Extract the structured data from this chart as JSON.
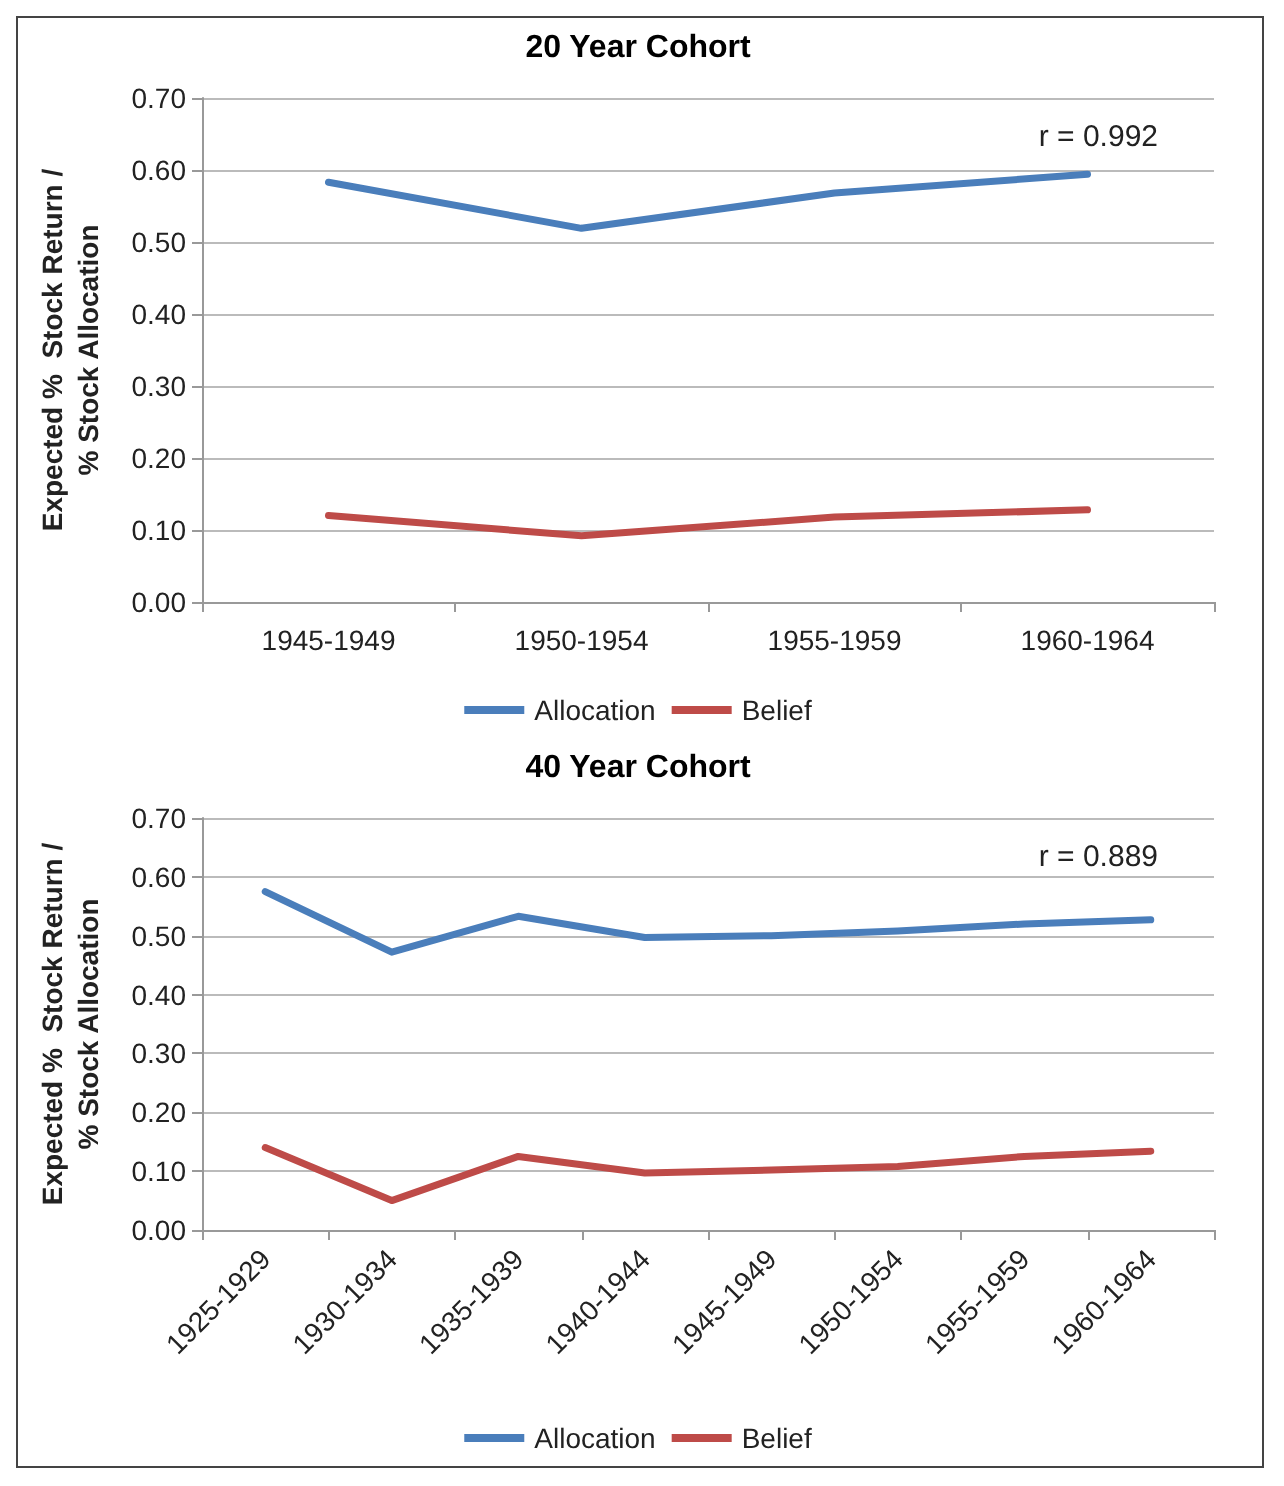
{
  "chart_data": [
    {
      "type": "line",
      "title": "20 Year Cohort",
      "ylabel": "Expected %  Stock Return /\n% Stock Allocation",
      "categories": [
        "1945-1949",
        "1950-1954",
        "1955-1959",
        "1960-1964"
      ],
      "series": [
        {
          "name": "Allocation",
          "color": "#4a7ebb",
          "values": [
            0.583,
            0.519,
            0.568,
            0.594
          ]
        },
        {
          "name": "Belief",
          "color": "#be4b48",
          "values": [
            0.12,
            0.092,
            0.118,
            0.128
          ]
        }
      ],
      "ylim": [
        0,
        0.7
      ],
      "yticks": [
        {
          "value": 0,
          "label": "0.00"
        },
        {
          "value": 0.1,
          "label": "0.10"
        },
        {
          "value": 0.2,
          "label": "0.20"
        },
        {
          "value": 0.3,
          "label": "0.30"
        },
        {
          "value": 0.4,
          "label": "0.40"
        },
        {
          "value": 0.5,
          "label": "0.50"
        },
        {
          "value": 0.6,
          "label": "0.60"
        },
        {
          "value": 0.7,
          "label": "0.70"
        }
      ],
      "annotations": [
        "r = 0.992"
      ],
      "grid": "y",
      "legend": "bottom",
      "marker": "none",
      "line_style": "solid"
    },
    {
      "type": "line",
      "title": "40 Year Cohort",
      "ylabel": "Expected %  Stock Return /\n% Stock Allocation",
      "categories": [
        "1925-1929",
        "1930-1934",
        "1935-1939",
        "1940-1944",
        "1945-1949",
        "1950-1954",
        "1955-1959",
        "1960-1964"
      ],
      "series": [
        {
          "name": "Allocation",
          "color": "#4a7ebb",
          "values": [
            0.575,
            0.472,
            0.533,
            0.497,
            0.5,
            0.508,
            0.52,
            0.527
          ]
        },
        {
          "name": "Belief",
          "color": "#be4b48",
          "values": [
            0.14,
            0.05,
            0.125,
            0.097,
            0.102,
            0.108,
            0.125,
            0.134
          ]
        }
      ],
      "ylim": [
        0,
        0.7
      ],
      "yticks": [
        {
          "value": 0,
          "label": "0.00"
        },
        {
          "value": 0.1,
          "label": "0.10"
        },
        {
          "value": 0.2,
          "label": "0.20"
        },
        {
          "value": 0.3,
          "label": "0.30"
        },
        {
          "value": 0.4,
          "label": "0.40"
        },
        {
          "value": 0.5,
          "label": "0.50"
        },
        {
          "value": 0.6,
          "label": "0.60"
        },
        {
          "value": 0.7,
          "label": "0.70"
        }
      ],
      "annotations": [
        "r = 0.889"
      ],
      "grid": "y",
      "legend": "bottom",
      "marker": "none",
      "line_style": "solid"
    }
  ]
}
